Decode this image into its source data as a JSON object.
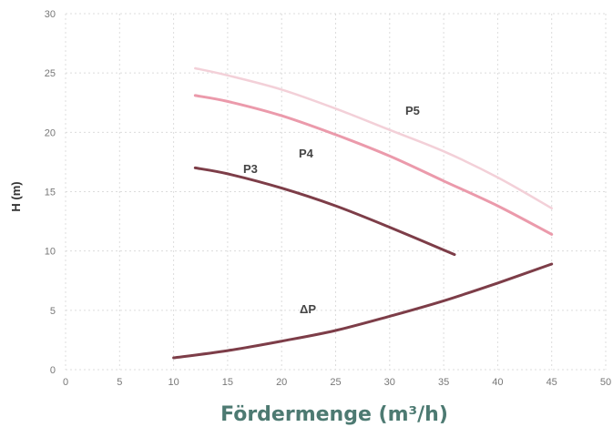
{
  "chart_data": {
    "type": "line",
    "title": "",
    "xlabel": "Fördermenge (m³/h)",
    "ylabel": "H (m)",
    "xlim": [
      0,
      50
    ],
    "ylim": [
      0,
      30
    ],
    "xticks": [
      "0",
      "5",
      "10",
      "15",
      "20",
      "25",
      "30",
      "35",
      "40",
      "45",
      "50"
    ],
    "yticks": [
      "0",
      "5",
      "10",
      "15",
      "20",
      "25",
      "30"
    ],
    "grid": true,
    "series": [
      {
        "name": "P5",
        "color": "#f3d0d8",
        "x": [
          12,
          15,
          20,
          25,
          30,
          35,
          40,
          45
        ],
        "y": [
          25.4,
          24.8,
          23.6,
          22.0,
          20.2,
          18.4,
          16.2,
          13.6
        ]
      },
      {
        "name": "P4",
        "color": "#eb9aab",
        "x": [
          12,
          15,
          20,
          25,
          30,
          35,
          40,
          45
        ],
        "y": [
          23.1,
          22.6,
          21.4,
          19.8,
          18.0,
          15.9,
          13.8,
          11.4
        ]
      },
      {
        "name": "P3",
        "color": "#7d3d48",
        "x": [
          12,
          15,
          20,
          25,
          30,
          36
        ],
        "y": [
          17.0,
          16.5,
          15.3,
          13.8,
          12.0,
          9.7
        ]
      },
      {
        "name": "ΔP",
        "color": "#7d3d48",
        "x": [
          10,
          15,
          20,
          25,
          30,
          35,
          40,
          45
        ],
        "y": [
          1.0,
          1.6,
          2.4,
          3.3,
          4.5,
          5.8,
          7.3,
          8.9
        ]
      }
    ]
  }
}
